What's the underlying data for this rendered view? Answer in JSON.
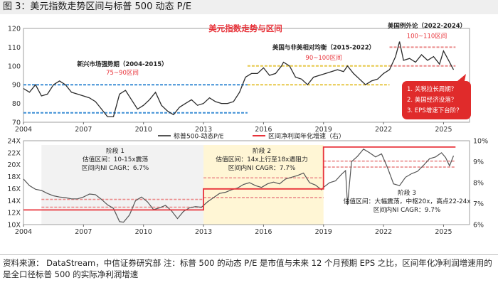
{
  "figure_title": "图 3：美元指数走势区间与标普 500 动态 P/E",
  "source_note": "资料来源：  DataStream，中信证券研究部        注：标普 500 的动态 P/E 是市值与未来 12 个月预期 EPS 之比，区间年化净利润增速用的是全口径标普 500 的实际净利润增速",
  "colors": {
    "dxy_line": "#2b2b2b",
    "pe_line": "#555555",
    "accent_red": "#e8333a",
    "band_red": "#ea8a8a",
    "band_yellow": "#e7c84a",
    "band_blue": "#3f8fd6",
    "panel_gray": "#f2f2f2",
    "panel_yellow": "#fff6d5",
    "box_red": "#e02b2b"
  },
  "chart_data": [
    {
      "type": "line",
      "title": "美元指数走势与区间",
      "xlim": [
        2004,
        2026.3
      ],
      "ylim": [
        70,
        120
      ],
      "x_ticks": [
        2004,
        2007,
        2010,
        2013,
        2016,
        2019,
        2022,
        2025
      ],
      "y_ticks": [
        70,
        80,
        90,
        100,
        110,
        120
      ],
      "series": [
        {
          "name": "美元指数",
          "x": [
            2004.0,
            2004.3,
            2004.6,
            2004.9,
            2005.2,
            2005.5,
            2005.8,
            2006.1,
            2006.4,
            2006.7,
            2007.0,
            2007.3,
            2007.6,
            2007.9,
            2008.2,
            2008.5,
            2008.8,
            2009.1,
            2009.4,
            2009.7,
            2010.0,
            2010.3,
            2010.6,
            2010.9,
            2011.2,
            2011.5,
            2011.8,
            2012.1,
            2012.4,
            2012.7,
            2013.0,
            2013.3,
            2013.6,
            2013.9,
            2014.2,
            2014.5,
            2014.8,
            2015.1,
            2015.4,
            2015.7,
            2016.0,
            2016.3,
            2016.6,
            2016.9,
            2017.0,
            2017.3,
            2017.6,
            2017.9,
            2018.2,
            2018.5,
            2018.8,
            2019.1,
            2019.4,
            2019.7,
            2020.0,
            2020.2,
            2020.5,
            2020.8,
            2021.1,
            2021.4,
            2021.7,
            2022.0,
            2022.3,
            2022.6,
            2022.8,
            2023.0,
            2023.3,
            2023.6,
            2023.9,
            2024.2,
            2024.5,
            2024.8,
            2025.0,
            2025.2,
            2025.5
          ],
          "y": [
            88,
            86,
            90,
            84,
            85,
            90,
            92,
            90,
            86,
            85,
            84,
            83,
            81,
            77,
            73,
            73,
            85,
            87,
            82,
            77,
            79,
            82,
            86,
            79,
            76,
            74,
            78,
            80,
            82,
            79,
            80,
            83,
            81,
            80,
            80,
            81,
            86,
            94,
            96,
            96,
            99,
            95,
            96,
            100,
            102,
            100,
            94,
            93,
            90,
            94,
            95,
            96,
            97,
            98,
            97,
            100,
            96,
            93,
            90,
            92,
            93,
            96,
            98,
            105,
            113,
            103,
            104,
            102,
            106,
            103,
            105,
            101,
            108,
            104,
            98
          ]
        }
      ],
      "bands": [
        {
          "label": "75~90区间",
          "range": [
            75,
            90
          ],
          "x_range": [
            2004,
            2015.2
          ],
          "color": "band_blue"
        },
        {
          "label": "90~100区间",
          "range": [
            90,
            100
          ],
          "x_range": [
            2015.2,
            2022.3
          ],
          "color": "band_yellow"
        },
        {
          "label": "100~110区间",
          "range": [
            100,
            110
          ],
          "x_range": [
            2022.3,
            2025.6
          ],
          "color": "band_red"
        }
      ],
      "annotations": [
        {
          "key": "chart_title",
          "text": "美元指数走势与区间"
        },
        {
          "key": "p1",
          "text": "新兴市场强势期（2004-2015）"
        },
        {
          "key": "p2",
          "text": "美国与非美相对均衡（2015-2022）"
        },
        {
          "key": "p3",
          "text": "美国例外论（2022-2024）"
        }
      ],
      "questions": [
        "1. 关税拉长周期？",
        "2. 美国经济没落？",
        "3. EPS增速下台阶？"
      ]
    },
    {
      "type": "line",
      "title": "",
      "xlim": [
        2004,
        2026.3
      ],
      "ylim": [
        10,
        24
      ],
      "y_ticks": [
        10,
        12,
        14,
        16,
        18,
        20,
        22,
        24
      ],
      "y_tick_labels": [
        "10X",
        "12X",
        "14X",
        "16X",
        "18X",
        "20X",
        "22X",
        "24X"
      ],
      "y2lim": [
        6,
        10
      ],
      "y2_ticks": [
        6,
        7,
        8,
        9,
        10
      ],
      "y2_tick_labels": [
        "6%",
        "7%",
        "8%",
        "9%",
        "10%"
      ],
      "x_ticks": [
        2004,
        2007,
        2010,
        2013,
        2016,
        2019,
        2022,
        2025
      ],
      "legend": [
        "标普500-动态P/E",
        "区间净利润年化增速（右）"
      ],
      "legend_position": "top-center",
      "series": [
        {
          "name": "标普500-动态P/E",
          "axis": "left",
          "x": [
            2004.0,
            2004.3,
            2004.6,
            2004.9,
            2005.2,
            2005.5,
            2005.8,
            2006.1,
            2006.4,
            2006.7,
            2007.0,
            2007.3,
            2007.6,
            2007.9,
            2008.2,
            2008.5,
            2008.8,
            2009.0,
            2009.3,
            2009.6,
            2009.9,
            2010.2,
            2010.5,
            2010.8,
            2011.1,
            2011.4,
            2011.7,
            2012.0,
            2012.3,
            2012.6,
            2012.9,
            2013.2,
            2013.5,
            2013.8,
            2014.1,
            2014.4,
            2014.7,
            2015.0,
            2015.3,
            2015.6,
            2015.9,
            2016.2,
            2016.5,
            2016.8,
            2017.1,
            2017.4,
            2017.7,
            2018.0,
            2018.3,
            2018.6,
            2018.9,
            2019.0,
            2019.3,
            2019.6,
            2019.9,
            2020.1,
            2020.2,
            2020.4,
            2020.7,
            2021.0,
            2021.3,
            2021.6,
            2021.9,
            2022.2,
            2022.5,
            2022.8,
            2023.1,
            2023.4,
            2023.7,
            2024.0,
            2024.3,
            2024.6,
            2024.9,
            2025.1,
            2025.3,
            2025.5
          ],
          "y": [
            17.6,
            16.5,
            15.9,
            15.7,
            15.2,
            14.8,
            14.6,
            14.5,
            14.3,
            14.3,
            14.6,
            15.1,
            15.0,
            14.2,
            13.3,
            12.7,
            10.5,
            10.4,
            11.6,
            14.0,
            14.6,
            13.8,
            12.5,
            12.8,
            13.2,
            12.3,
            11.0,
            12.2,
            12.8,
            13.0,
            12.9,
            13.8,
            14.5,
            15.2,
            15.4,
            15.8,
            16.1,
            16.7,
            17.0,
            16.5,
            16.2,
            16.8,
            17.1,
            16.8,
            17.6,
            17.9,
            18.2,
            18.6,
            17.0,
            16.6,
            15.8,
            16.2,
            17.0,
            17.3,
            18.4,
            19.0,
            13.3,
            20.5,
            21.4,
            22.6,
            22.0,
            21.3,
            21.8,
            19.5,
            16.8,
            16.5,
            17.9,
            18.5,
            18.9,
            19.9,
            21.0,
            21.3,
            22.0,
            21.2,
            19.8,
            21.5
          ]
        },
        {
          "name": "区间净利润年化增速（右）",
          "axis": "right",
          "step": true,
          "x": [
            2004.0,
            2013.0,
            2013.0,
            2019.0,
            2019.0,
            2025.6
          ],
          "y": [
            6.7,
            6.7,
            7.7,
            7.7,
            9.7,
            9.7
          ]
        }
      ],
      "phases": [
        {
          "title": "阶段 1",
          "line1": "估值区间：10-15x震荡",
          "line2": "区间内NI CAGR：6.7%",
          "x_range": [
            2004.9,
            2013.0
          ],
          "pe_range": [
            12.9,
            14.2
          ]
        },
        {
          "title": "阶段 2",
          "line1": "估值区间：14x上行至18x遇阻力",
          "line2": "区间内NI CAGR：7.7%",
          "x_range": [
            2013.0,
            2019.0
          ],
          "pe_range": [
            14.5,
            17.8
          ]
        },
        {
          "title": "阶段 3",
          "line1": "估值区间：大幅震荡，中枢20x，高点22-24x",
          "line2": "区间内NI CAGR：9.7%",
          "x_range": [
            2019.0,
            2025.6
          ],
          "pe_range": [
            19.6,
            20.6
          ]
        }
      ]
    }
  ]
}
